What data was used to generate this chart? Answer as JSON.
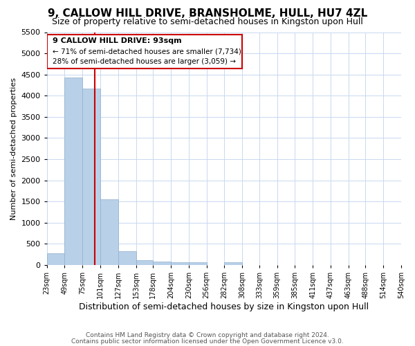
{
  "title": "9, CALLOW HILL DRIVE, BRANSHOLME, HULL, HU7 4ZL",
  "subtitle": "Size of property relative to semi-detached houses in Kingston upon Hull",
  "xlabel": "Distribution of semi-detached houses by size in Kingston upon Hull",
  "ylabel": "Number of semi-detached properties",
  "footer_line1": "Contains HM Land Registry data © Crown copyright and database right 2024.",
  "footer_line2": "Contains public sector information licensed under the Open Government Licence v3.0.",
  "annotation_line1": "9 CALLOW HILL DRIVE: 93sqm",
  "annotation_line2": "← 71% of semi-detached houses are smaller (7,734)",
  "annotation_line3": "28% of semi-detached houses are larger (3,059) →",
  "property_size": 93,
  "bar_color": "#b8d0e8",
  "bar_edge_color": "#90b0cc",
  "vline_color": "#cc0000",
  "annotation_box_edgecolor": "#cc0000",
  "grid_color": "#c8d8f0",
  "bg_color": "#ffffff",
  "bins": [
    23,
    49,
    75,
    101,
    127,
    153,
    178,
    204,
    230,
    256,
    282,
    308,
    333,
    359,
    385,
    411,
    437,
    463,
    488,
    514,
    540
  ],
  "counts": [
    280,
    4430,
    4160,
    1560,
    330,
    120,
    80,
    70,
    70,
    0,
    60,
    0,
    0,
    0,
    0,
    0,
    0,
    0,
    0,
    0
  ],
  "ylim": [
    0,
    5500
  ],
  "yticks": [
    0,
    500,
    1000,
    1500,
    2000,
    2500,
    3000,
    3500,
    4000,
    4500,
    5000,
    5500
  ],
  "title_fontsize": 11,
  "subtitle_fontsize": 9,
  "ylabel_fontsize": 8,
  "xlabel_fontsize": 9,
  "ytick_fontsize": 8,
  "xtick_fontsize": 7
}
